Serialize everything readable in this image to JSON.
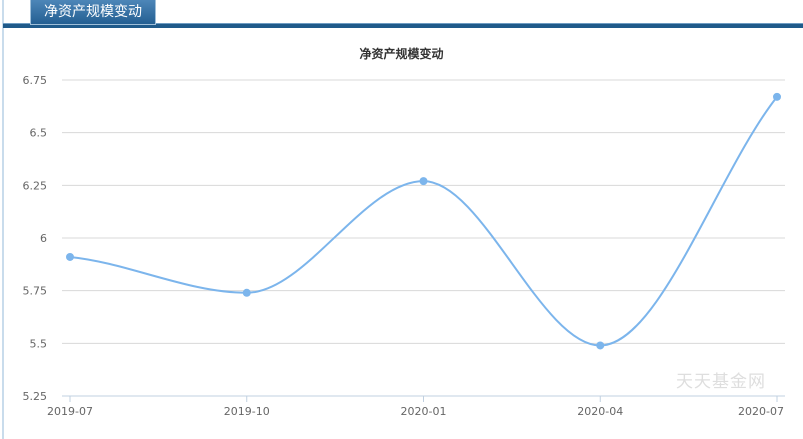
{
  "tab": {
    "label": "净资产规模变动"
  },
  "watermark": "天天基金网",
  "colors": {
    "line": "#7cb5ec",
    "grid": "#d8d8d8",
    "axis": "#c0d0e0",
    "tab": "#245f92"
  },
  "chart_data": {
    "type": "line",
    "title": "净资产规模变动",
    "xlabel": "",
    "ylabel": "",
    "categories": [
      "2019-07",
      "2019-10",
      "2020-01",
      "2020-04",
      "2020-07"
    ],
    "series": [
      {
        "name": "净资产规模",
        "values": [
          5.91,
          5.74,
          6.27,
          5.49,
          6.67
        ]
      }
    ],
    "yticks": [
      "6.75",
      "6.5",
      "6.25",
      "6",
      "5.75",
      "5.5",
      "5.25"
    ],
    "ylim": [
      5.25,
      6.75
    ],
    "grid": true,
    "smooth": true,
    "legend": "none"
  }
}
